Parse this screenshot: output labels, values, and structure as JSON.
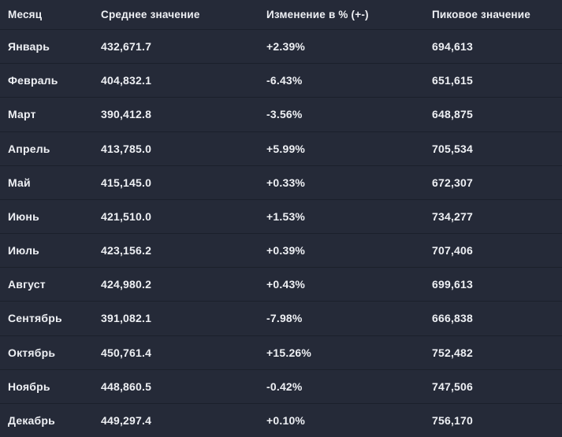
{
  "theme": {
    "row_background": "#252a38",
    "separator_color": "#1b202b",
    "text_color": "#eef0f4"
  },
  "table": {
    "columns": [
      {
        "key": "month",
        "label": "Месяц"
      },
      {
        "key": "average",
        "label": "Среднее значение"
      },
      {
        "key": "change",
        "label": "Изменение в % (+-)"
      },
      {
        "key": "peak",
        "label": "Пиковое значение"
      }
    ],
    "rows": [
      {
        "month": "Январь",
        "average": "432,671.7",
        "change": "+2.39%",
        "peak": "694,613"
      },
      {
        "month": "Февраль",
        "average": "404,832.1",
        "change": "-6.43%",
        "peak": "651,615"
      },
      {
        "month": "Март",
        "average": "390,412.8",
        "change": "-3.56%",
        "peak": "648,875"
      },
      {
        "month": "Апрель",
        "average": "413,785.0",
        "change": "+5.99%",
        "peak": "705,534"
      },
      {
        "month": "Май",
        "average": "415,145.0",
        "change": "+0.33%",
        "peak": "672,307"
      },
      {
        "month": "Июнь",
        "average": "421,510.0",
        "change": "+1.53%",
        "peak": "734,277"
      },
      {
        "month": "Июль",
        "average": "423,156.2",
        "change": "+0.39%",
        "peak": "707,406"
      },
      {
        "month": "Август",
        "average": "424,980.2",
        "change": "+0.43%",
        "peak": "699,613"
      },
      {
        "month": "Сентябрь",
        "average": "391,082.1",
        "change": "-7.98%",
        "peak": "666,838"
      },
      {
        "month": "Октябрь",
        "average": "450,761.4",
        "change": "+15.26%",
        "peak": "752,482"
      },
      {
        "month": "Ноябрь",
        "average": "448,860.5",
        "change": "-0.42%",
        "peak": "747,506"
      },
      {
        "month": "Декабрь",
        "average": "449,297.4",
        "change": "+0.10%",
        "peak": "756,170"
      }
    ]
  }
}
